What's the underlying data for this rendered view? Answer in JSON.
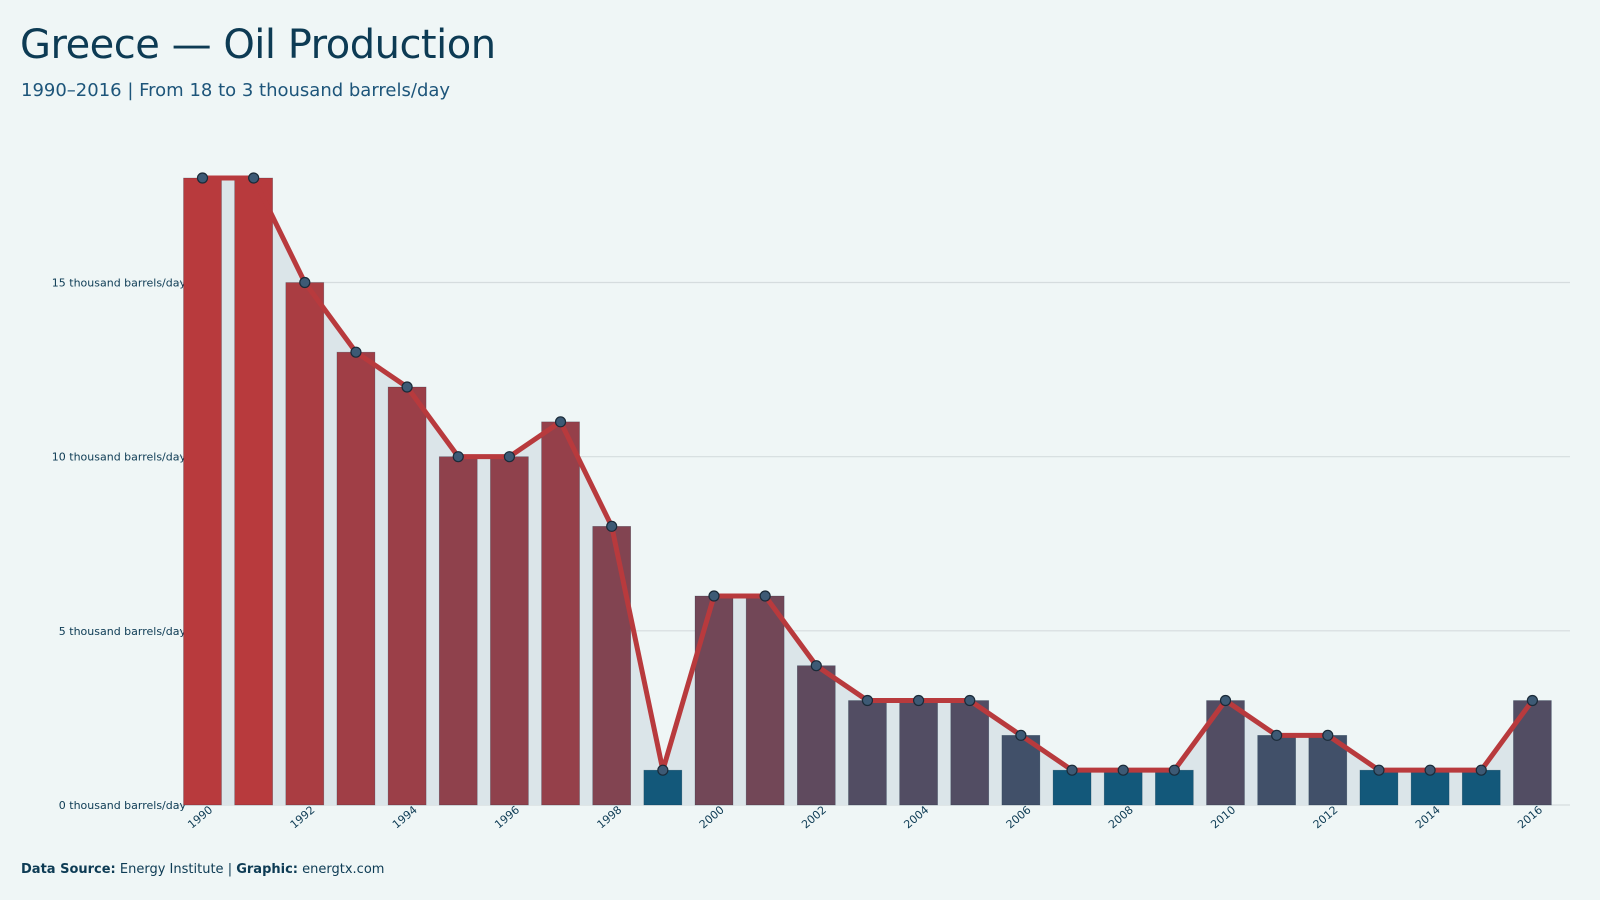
{
  "header": {
    "title": "Greece — Oil Production",
    "subtitle": "1990–2016 | From 18 to 3 thousand barrels/day"
  },
  "footer": {
    "source_label": "Data Source:",
    "source_value": "Energy Institute",
    "separator": "|",
    "graphic_label": "Graphic:",
    "graphic_value": "energtx.com"
  },
  "colors": {
    "background": "#eff6f6",
    "area_fill": "#dbe5e9",
    "line": "#b83a3d",
    "high": "#b83a3d",
    "low": "#13587a",
    "gridline": "#d5dcde"
  },
  "chart_data": {
    "type": "bar",
    "x": [
      1990,
      1991,
      1992,
      1993,
      1994,
      1995,
      1996,
      1997,
      1998,
      1999,
      2000,
      2001,
      2002,
      2003,
      2004,
      2005,
      2006,
      2007,
      2008,
      2009,
      2010,
      2011,
      2012,
      2013,
      2014,
      2015,
      2016
    ],
    "values": [
      18,
      18,
      15,
      13,
      12,
      10,
      10,
      11,
      8,
      1,
      6,
      6,
      4,
      3,
      3,
      3,
      2,
      1,
      1,
      1,
      3,
      2,
      2,
      1,
      1,
      1,
      3
    ],
    "overlay": [
      "line",
      "area",
      "points"
    ],
    "x_tick_labels": [
      "1990",
      "1992",
      "1994",
      "1996",
      "1998",
      "2000",
      "2002",
      "2004",
      "2006",
      "2008",
      "2010",
      "2012",
      "2014",
      "2016"
    ],
    "y_tick_values": [
      0,
      5,
      10,
      15
    ],
    "y_tick_labels": [
      "0 thousand barrels/day",
      "5 thousand barrels/day",
      "10 thousand barrels/day",
      "15 thousand barrels/day"
    ],
    "ylim": [
      0,
      18
    ],
    "grid": true,
    "legend": "none"
  }
}
